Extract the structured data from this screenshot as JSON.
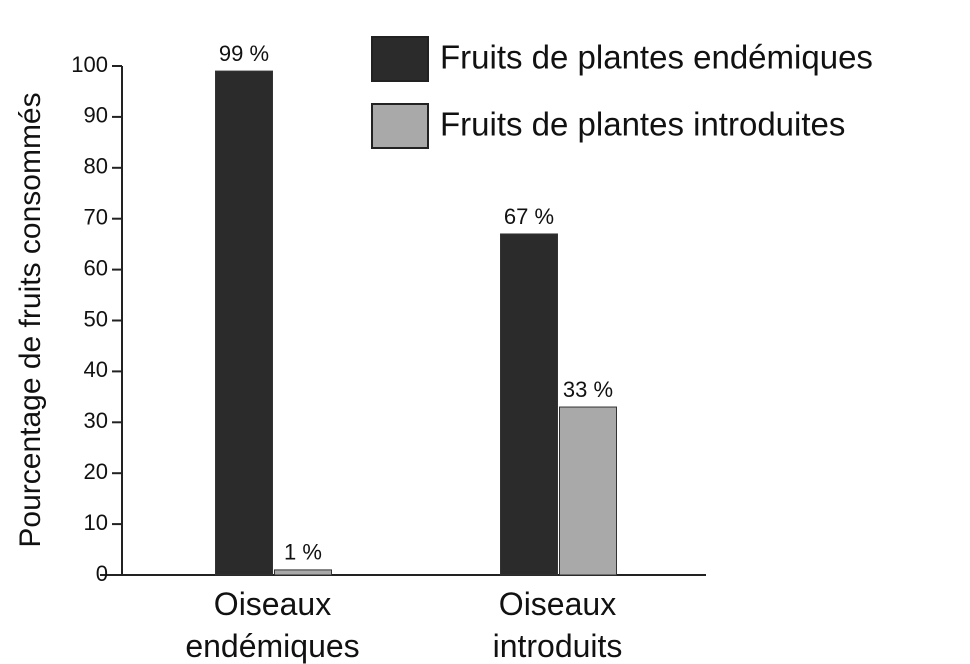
{
  "chart_data": {
    "type": "bar",
    "ylabel": "Pourcentage de fruits consommés",
    "categories": [
      "Oiseaux endémiques",
      "Oiseaux introduits"
    ],
    "series": [
      {
        "name": "Fruits de plantes endémiques",
        "color": "#2b2b2b",
        "values": [
          99,
          67
        ],
        "value_labels": [
          "99 %",
          "67 %"
        ]
      },
      {
        "name": "Fruits de plantes introduites",
        "color": "#a9a9a9",
        "values": [
          1,
          33
        ],
        "value_labels": [
          "1 %",
          "33 %"
        ]
      }
    ],
    "ylim": [
      0,
      100
    ],
    "yticks": [
      0,
      10,
      20,
      30,
      40,
      50,
      60,
      70,
      80,
      90,
      100
    ],
    "legend": "top-right",
    "grid": false
  }
}
